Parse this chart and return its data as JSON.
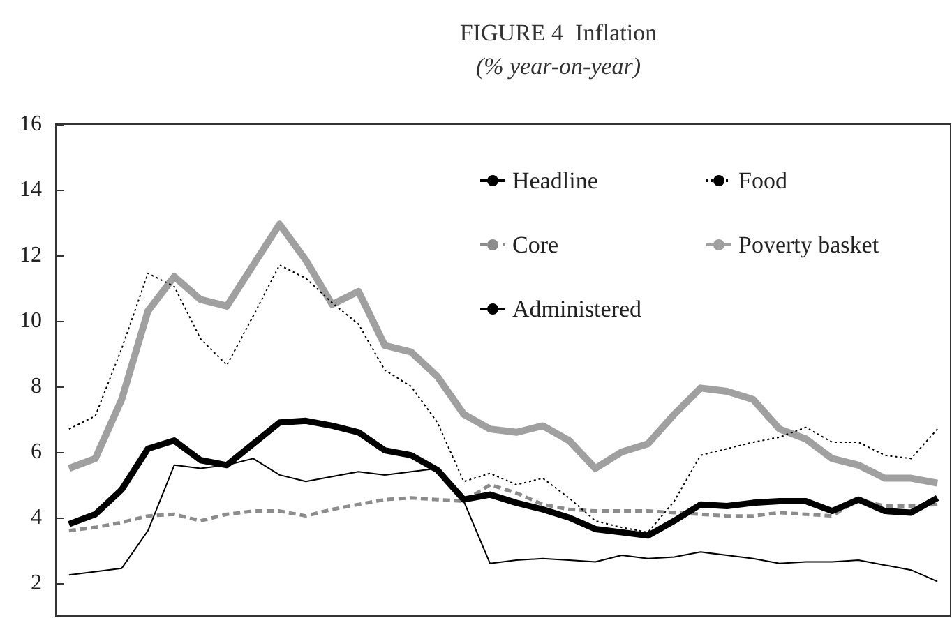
{
  "chart_data": {
    "type": "line",
    "title": "FIGURE 4  Inflation",
    "subtitle": "(% year-on-year)",
    "categories": [
      null,
      null,
      null,
      null,
      null,
      null,
      null,
      null,
      null,
      null,
      null,
      null,
      null,
      null,
      null,
      null,
      null,
      null,
      null,
      null,
      null,
      null,
      null,
      null,
      null,
      null,
      null,
      null,
      null,
      null,
      null,
      null,
      null,
      null
    ],
    "series": [
      {
        "name": "Headline",
        "color": "#000000",
        "line_style": "solid",
        "values": [
          3.8,
          4.1,
          4.85,
          6.1,
          6.35,
          5.75,
          5.6,
          6.25,
          6.9,
          6.95,
          6.8,
          6.6,
          6.05,
          5.9,
          5.45,
          4.55,
          4.7,
          4.45,
          4.25,
          4.0,
          3.65,
          3.55,
          3.45,
          3.9,
          4.4,
          4.35,
          4.45,
          4.5,
          4.5,
          4.2,
          4.55,
          4.2,
          4.15,
          4.6
        ]
      },
      {
        "name": "Food",
        "color": "#000000",
        "line_style": "dotted",
        "values": [
          6.7,
          7.1,
          9.15,
          11.45,
          11.05,
          9.45,
          8.65,
          10.15,
          11.7,
          11.3,
          10.55,
          9.9,
          8.5,
          8.0,
          6.9,
          5.1,
          5.35,
          5.0,
          5.2,
          4.6,
          3.9,
          3.7,
          3.55,
          4.5,
          5.9,
          6.1,
          6.3,
          6.45,
          6.75,
          6.3,
          6.3,
          5.9,
          5.8,
          6.7
        ]
      },
      {
        "name": "Core",
        "color": "#8c8c8c",
        "line_style": "dashed",
        "values": [
          3.6,
          3.7,
          3.85,
          4.05,
          4.1,
          3.9,
          4.1,
          4.2,
          4.2,
          4.05,
          4.25,
          4.4,
          4.55,
          4.6,
          4.55,
          4.5,
          5.0,
          4.75,
          4.4,
          4.25,
          4.2,
          4.2,
          4.2,
          4.15,
          4.1,
          4.05,
          4.05,
          4.15,
          4.1,
          4.05,
          4.55,
          4.35,
          4.35,
          4.4
        ]
      },
      {
        "name": "Poverty basket",
        "color": "#a0a0a0",
        "line_style": "solid",
        "values": [
          5.5,
          5.8,
          7.6,
          10.3,
          11.35,
          10.65,
          10.45,
          11.7,
          12.95,
          11.85,
          10.5,
          10.9,
          9.25,
          9.05,
          8.3,
          7.15,
          6.7,
          6.6,
          6.8,
          6.35,
          5.5,
          6.0,
          6.25,
          7.15,
          7.95,
          7.85,
          7.6,
          6.7,
          6.4,
          5.8,
          5.6,
          5.2,
          5.2,
          5.05
        ]
      },
      {
        "name": "Administered",
        "color": "#000000",
        "line_style": "solid",
        "values": [
          2.25,
          2.35,
          2.45,
          3.6,
          5.6,
          5.5,
          5.6,
          5.8,
          5.3,
          5.1,
          5.25,
          5.4,
          5.3,
          5.4,
          5.5,
          4.5,
          2.6,
          2.7,
          2.75,
          2.7,
          2.65,
          2.85,
          2.75,
          2.8,
          2.95,
          2.85,
          2.75,
          2.6,
          2.65,
          2.65,
          2.7,
          2.55,
          2.4,
          2.05
        ]
      }
    ],
    "ylim": [
      1,
      16
    ],
    "yticks": [
      2,
      4,
      6,
      8,
      10,
      12,
      14,
      16
    ],
    "grid": false,
    "legend": "top right",
    "marker": "none",
    "tick_labels": "y"
  }
}
